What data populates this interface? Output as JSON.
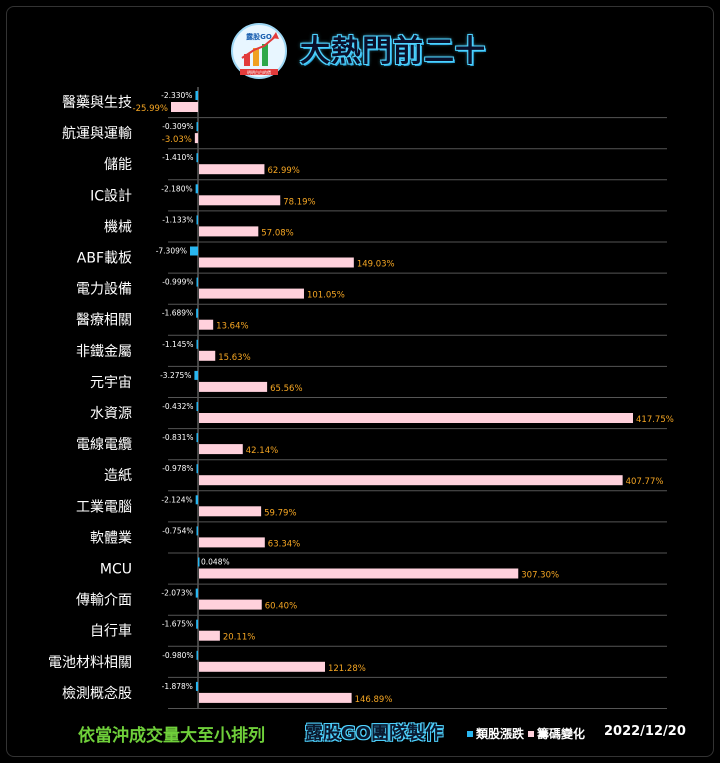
{
  "header": {
    "title": "大熱門前二十",
    "logo_text": "露股GO",
    "logo_subtext": "明明白白的價"
  },
  "colors": {
    "background": "#000000",
    "price_bar": "#29b6f0",
    "chip_bar": "#ffd1dc",
    "chip_label": "#f5a623",
    "price_label": "#ffffff",
    "grid": "#555555"
  },
  "chart_data": {
    "type": "bar",
    "orientation": "horizontal",
    "categories": [
      "醫藥與生技",
      "航運與運輸",
      "儲能",
      "IC設計",
      "機械",
      "ABF載板",
      "電力設備",
      "醫療相關",
      "非鐵金屬",
      "元宇宙",
      "水資源",
      "電線電纜",
      "造紙",
      "工業電腦",
      "軟體業",
      "MCU",
      "傳輸介面",
      "自行車",
      "電池材料相關",
      "檢測概念股"
    ],
    "series": [
      {
        "name": "類股漲跌",
        "values": [
          -2.33,
          -0.309,
          -1.41,
          -2.18,
          -1.133,
          -7.309,
          -0.999,
          -1.689,
          -1.145,
          -3.275,
          -0.432,
          -0.831,
          -0.978,
          -2.124,
          -0.754,
          0.048,
          -2.073,
          -1.675,
          -0.98,
          -1.878
        ],
        "labels": [
          "-2.330%",
          "-0.309%",
          "-1.410%",
          "-2.180%",
          "-1.133%",
          "-7.309%",
          "-0.999%",
          "-1.689%",
          "-1.145%",
          "-3.275%",
          "-0.432%",
          "-0.831%",
          "-0.978%",
          "-2.124%",
          "-0.754%",
          "0.048%",
          "-2.073%",
          "-1.675%",
          "-0.980%",
          "-1.878%"
        ]
      },
      {
        "name": "籌碼變化",
        "values": [
          -25.99,
          -3.03,
          62.99,
          78.19,
          57.08,
          149.03,
          101.05,
          13.64,
          15.63,
          65.56,
          417.75,
          42.14,
          407.77,
          59.79,
          63.34,
          307.3,
          60.4,
          20.11,
          121.28,
          146.89
        ],
        "labels": [
          "-25.99%",
          "-3.03%",
          "62.99%",
          "78.19%",
          "57.08%",
          "149.03%",
          "101.05%",
          "13.64%",
          "15.63%",
          "65.56%",
          "417.75%",
          "42.14%",
          "407.77%",
          "59.79%",
          "63.34%",
          "307.30%",
          "60.40%",
          "20.11%",
          "121.28%",
          "146.89%"
        ]
      }
    ],
    "legend_position": "bottom-right",
    "grid": true
  },
  "footer": {
    "sort_note": "依當沖成交量大至小排列",
    "team": "露股GO團隊製作",
    "legend_price": "類股漲跌",
    "legend_chip": "籌碼變化",
    "date": "2022/12/20"
  }
}
